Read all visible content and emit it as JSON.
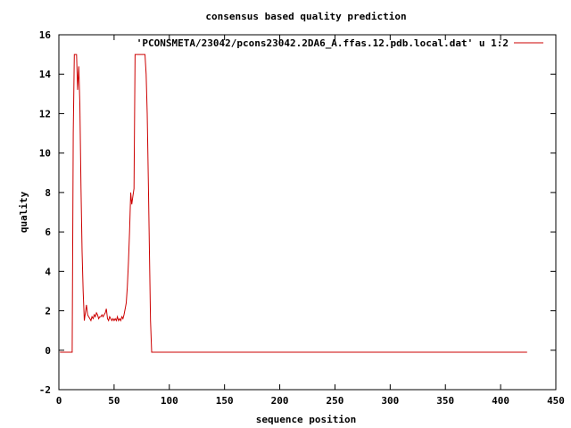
{
  "chart_data": {
    "type": "line",
    "title": "consensus based quality prediction",
    "xlabel": "sequence position",
    "ylabel": "quality",
    "xlim": [
      0,
      450
    ],
    "ylim": [
      -2,
      16
    ],
    "xticks": [
      0,
      50,
      100,
      150,
      200,
      250,
      300,
      350,
      400,
      450
    ],
    "yticks": [
      -2,
      0,
      2,
      4,
      6,
      8,
      10,
      12,
      14,
      16
    ],
    "grid": false,
    "legend_position": "top-right",
    "series": [
      {
        "name": "'PCONSMETA/23042/pcons23042.2DA6_A.ffas.12.pdb.local.dat' u 1:2",
        "color": "#cc0000",
        "x": [
          1,
          12,
          13,
          14,
          15,
          16,
          17,
          18,
          19,
          20,
          21,
          22,
          23,
          24,
          25,
          26,
          27,
          28,
          29,
          30,
          31,
          32,
          33,
          34,
          35,
          36,
          37,
          38,
          39,
          40,
          41,
          42,
          43,
          44,
          45,
          46,
          47,
          48,
          49,
          50,
          51,
          52,
          53,
          54,
          55,
          56,
          57,
          58,
          59,
          60,
          61,
          62,
          63,
          64,
          65,
          66,
          67,
          68,
          69,
          70,
          71,
          72,
          73,
          74,
          75,
          76,
          77,
          78,
          79,
          80,
          81,
          82,
          83,
          84,
          85,
          86,
          87,
          88,
          89,
          90,
          91,
          92,
          93,
          94,
          95,
          424
        ],
        "y": [
          -0.1,
          -0.1,
          11.0,
          15.0,
          15.0,
          15.0,
          13.2,
          14.4,
          12.5,
          8.2,
          5.0,
          3.0,
          1.5,
          1.9,
          2.3,
          1.8,
          1.7,
          1.6,
          1.5,
          1.7,
          1.6,
          1.8,
          1.7,
          1.9,
          1.8,
          1.6,
          1.7,
          1.7,
          1.8,
          1.7,
          1.8,
          1.9,
          2.1,
          1.6,
          1.5,
          1.7,
          1.6,
          1.5,
          1.6,
          1.5,
          1.6,
          1.5,
          1.7,
          1.5,
          1.6,
          1.5,
          1.7,
          1.6,
          1.8,
          2.1,
          2.4,
          3.2,
          4.5,
          6.0,
          8.0,
          7.4,
          7.8,
          8.2,
          15.0,
          15.0,
          15.0,
          15.0,
          15.0,
          15.0,
          15.0,
          15.0,
          15.0,
          15.0,
          14.0,
          12.0,
          8.5,
          5.0,
          1.5,
          -0.1,
          -0.1,
          -0.1,
          -0.1,
          -0.1,
          -0.1,
          -0.1,
          -0.1,
          -0.1,
          -0.1,
          -0.1,
          -0.1,
          -0.1
        ]
      }
    ]
  }
}
